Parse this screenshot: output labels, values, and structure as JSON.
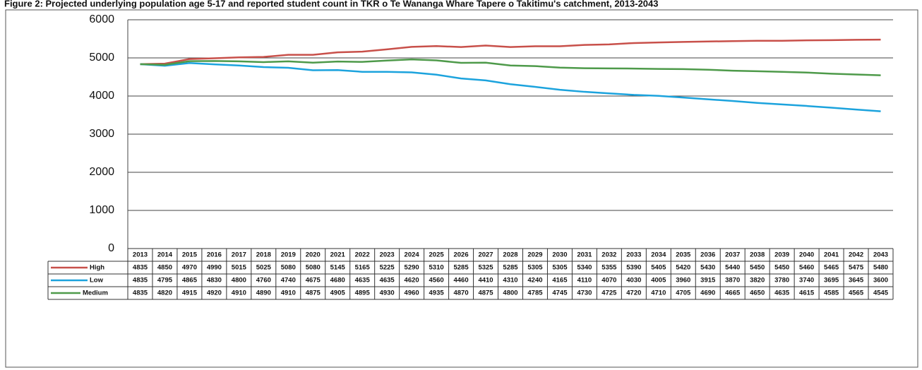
{
  "chart_data": {
    "type": "line",
    "title": "Figure 2: Projected underlying population age 5-17 and reported student count in TKR o Te Wananga Whare Tapere o Takitimu's catchment, 2013-2043",
    "categories": [
      "2013",
      "2014",
      "2015",
      "2016",
      "2017",
      "2018",
      "2019",
      "2020",
      "2021",
      "2022",
      "2023",
      "2024",
      "2025",
      "2026",
      "2027",
      "2028",
      "2029",
      "2030",
      "2031",
      "2032",
      "2033",
      "2034",
      "2035",
      "2036",
      "2037",
      "2038",
      "2039",
      "2040",
      "2041",
      "2042",
      "2043"
    ],
    "series": [
      {
        "name": "High",
        "color": "#c8504a",
        "values": [
          4835,
          4850,
          4970,
          4990,
          5015,
          5025,
          5080,
          5080,
          5145,
          5165,
          5225,
          5290,
          5310,
          5285,
          5325,
          5285,
          5305,
          5305,
          5340,
          5355,
          5390,
          5405,
          5420,
          5430,
          5440,
          5450,
          5450,
          5460,
          5465,
          5475,
          5480
        ]
      },
      {
        "name": "Low",
        "color": "#1ca3dd",
        "values": [
          4835,
          4795,
          4865,
          4830,
          4800,
          4760,
          4740,
          4675,
          4680,
          4635,
          4635,
          4620,
          4560,
          4460,
          4410,
          4310,
          4240,
          4165,
          4110,
          4070,
          4030,
          4005,
          3960,
          3915,
          3870,
          3820,
          3780,
          3740,
          3695,
          3645,
          3600
        ]
      },
      {
        "name": "Medium",
        "color": "#4e9a4a",
        "values": [
          4835,
          4820,
          4915,
          4920,
          4910,
          4890,
          4910,
          4875,
          4905,
          4895,
          4930,
          4960,
          4935,
          4870,
          4875,
          4800,
          4785,
          4745,
          4730,
          4725,
          4720,
          4710,
          4705,
          4690,
          4665,
          4650,
          4635,
          4615,
          4585,
          4565,
          4545
        ]
      }
    ],
    "ylim": [
      0,
      6000
    ],
    "yticks": [
      0,
      1000,
      2000,
      3000,
      4000,
      5000,
      6000
    ],
    "grid": true
  }
}
